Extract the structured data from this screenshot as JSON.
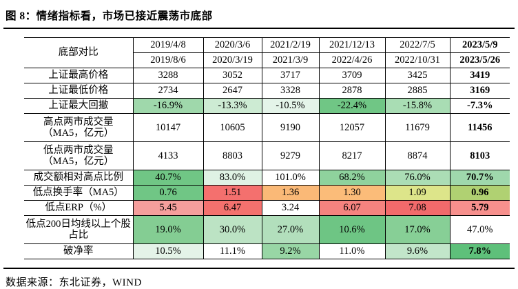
{
  "title": "图 8：情绪指标看，市场已接近震荡市底部",
  "source": "数据来源：东北证券，WIND",
  "table": {
    "corner_label": "底部对比",
    "columns": [
      {
        "period_start": "2019/4/8",
        "period_end": "2019/8/6",
        "bold": false
      },
      {
        "period_start": "2020/3/6",
        "period_end": "2020/3/19",
        "bold": false
      },
      {
        "period_start": "2021/2/19",
        "period_end": "2021/3/9",
        "bold": false
      },
      {
        "period_start": "2021/12/13",
        "period_end": "2022/4/26",
        "bold": false
      },
      {
        "period_start": "2022/7/5",
        "period_end": "2022/10/31",
        "bold": false
      },
      {
        "period_start": "2023/5/9",
        "period_end": "2023/5/26",
        "bold": true
      }
    ],
    "rows": [
      {
        "label": "上证最高价格",
        "tall": false,
        "cells": [
          {
            "text": "3288",
            "bg": "",
            "bold": false
          },
          {
            "text": "3052",
            "bg": "",
            "bold": false
          },
          {
            "text": "3717",
            "bg": "",
            "bold": false
          },
          {
            "text": "3709",
            "bg": "",
            "bold": false
          },
          {
            "text": "3425",
            "bg": "",
            "bold": false
          },
          {
            "text": "3419",
            "bg": "",
            "bold": true
          }
        ]
      },
      {
        "label": "上证最低价格",
        "tall": false,
        "cells": [
          {
            "text": "2734",
            "bg": "",
            "bold": false
          },
          {
            "text": "2647",
            "bg": "",
            "bold": false
          },
          {
            "text": "3328",
            "bg": "",
            "bold": false
          },
          {
            "text": "2878",
            "bg": "",
            "bold": false
          },
          {
            "text": "2885",
            "bg": "",
            "bold": false
          },
          {
            "text": "3169",
            "bg": "",
            "bold": true
          }
        ]
      },
      {
        "label": "上证最大回撤",
        "tall": false,
        "cells": [
          {
            "text": "-16.9%",
            "bg": "#9fd8ab",
            "bold": false
          },
          {
            "text": "-13.3%",
            "bg": "#cdebd3",
            "bold": false
          },
          {
            "text": "-10.5%",
            "bg": "#e4f4e9",
            "bold": false
          },
          {
            "text": "-22.4%",
            "bg": "#70c685",
            "bold": false
          },
          {
            "text": "-15.8%",
            "bg": "#a9ddb4",
            "bold": false
          },
          {
            "text": "-7.3%",
            "bg": "",
            "bold": true
          }
        ]
      },
      {
        "label": "高点两市成交量（MA5，亿元）",
        "tall": true,
        "cells": [
          {
            "text": "10147",
            "bg": "",
            "bold": false
          },
          {
            "text": "10605",
            "bg": "",
            "bold": false
          },
          {
            "text": "9190",
            "bg": "",
            "bold": false
          },
          {
            "text": "12057",
            "bg": "",
            "bold": false
          },
          {
            "text": "11679",
            "bg": "",
            "bold": false
          },
          {
            "text": "11456",
            "bg": "",
            "bold": true
          }
        ]
      },
      {
        "label": "低点两市成交量（MA5，亿元）",
        "tall": true,
        "cells": [
          {
            "text": "4133",
            "bg": "",
            "bold": false
          },
          {
            "text": "8803",
            "bg": "",
            "bold": false
          },
          {
            "text": "9279",
            "bg": "",
            "bold": false
          },
          {
            "text": "8217",
            "bg": "",
            "bold": false
          },
          {
            "text": "8874",
            "bg": "",
            "bold": false
          },
          {
            "text": "8103",
            "bg": "",
            "bold": true
          }
        ]
      },
      {
        "label": "成交额相对高点比例",
        "tall": false,
        "cells": [
          {
            "text": "40.7%",
            "bg": "#70c685",
            "bold": false
          },
          {
            "text": "83.0%",
            "bg": "#dff2e4",
            "bold": false
          },
          {
            "text": "101.0%",
            "bg": "",
            "bold": false
          },
          {
            "text": "68.2%",
            "bg": "#8fd29d",
            "bold": false
          },
          {
            "text": "76.0%",
            "bg": "#abddb5",
            "bold": false
          },
          {
            "text": "70.7%",
            "bg": "#9fd8ac",
            "bold": true
          }
        ]
      },
      {
        "label": "低点换手率（MA5）",
        "tall": false,
        "cells": [
          {
            "text": "0.76",
            "bg": "#70c685",
            "bold": false
          },
          {
            "text": "1.51",
            "bg": "#f4706e",
            "bold": false
          },
          {
            "text": "1.36",
            "bg": "#fab977",
            "bold": false
          },
          {
            "text": "1.30",
            "bg": "#fbbc79",
            "bold": false
          },
          {
            "text": "1.09",
            "bg": "#dde58a",
            "bold": false
          },
          {
            "text": "0.96",
            "bg": "#b0d172",
            "bold": true
          }
        ]
      },
      {
        "label": "低点ERP（%）",
        "tall": false,
        "cells": [
          {
            "text": "5.45",
            "bg": "#f59e9c",
            "bold": false
          },
          {
            "text": "6.47",
            "bg": "#f4716e",
            "bold": false
          },
          {
            "text": "3.24",
            "bg": "",
            "bold": false
          },
          {
            "text": "6.07",
            "bg": "#f5837f",
            "bold": false
          },
          {
            "text": "7.08",
            "bg": "#f26a6b",
            "bold": false
          },
          {
            "text": "5.79",
            "bg": "#f7908d",
            "bold": true
          }
        ]
      },
      {
        "label": "低点200日均线以上个股占比",
        "tall": true,
        "cells": [
          {
            "text": "19.0%",
            "bg": "#84cd93",
            "bold": false
          },
          {
            "text": "30.0%",
            "bg": "#bce3c4",
            "bold": false
          },
          {
            "text": "27.0%",
            "bg": "#b2dfbc",
            "bold": false
          },
          {
            "text": "10.6%",
            "bg": "#6ec584",
            "bold": false
          },
          {
            "text": "17.0%",
            "bg": "#87cf96",
            "bold": false
          },
          {
            "text": "47.0%",
            "bg": "",
            "bold": false
          }
        ]
      },
      {
        "label": "破净率",
        "tall": false,
        "cells": [
          {
            "text": "10.5%",
            "bg": "#e4f3e8",
            "bold": false
          },
          {
            "text": "11.1%",
            "bg": "",
            "bold": false
          },
          {
            "text": "9.2%",
            "bg": "#98d6a5",
            "bold": false
          },
          {
            "text": "11.0%",
            "bg": "",
            "bold": false
          },
          {
            "text": "9.6%",
            "bg": "#c2e6ca",
            "bold": false
          },
          {
            "text": "7.8%",
            "bg": "#5ec07a",
            "bold": true
          }
        ]
      }
    ]
  }
}
